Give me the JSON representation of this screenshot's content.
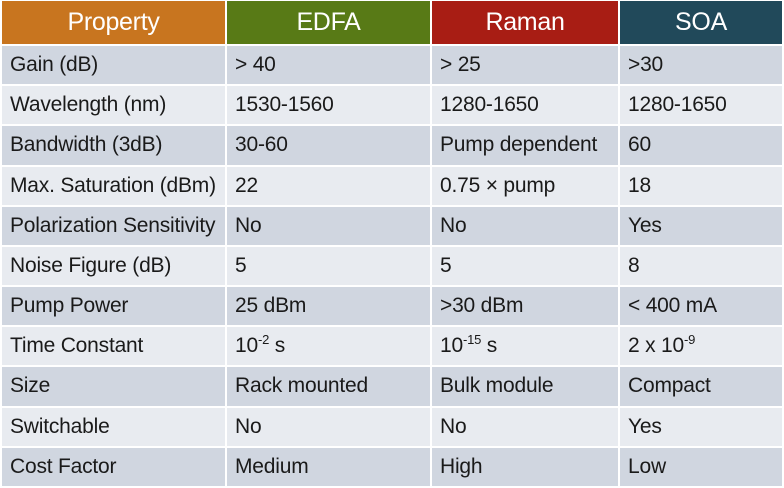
{
  "colors": {
    "property_header": "#c8751f",
    "edfa_header": "#587a16",
    "raman_header": "#a81d14",
    "soa_header": "#21495a",
    "row_dark": "#d0d6e0",
    "row_light": "#e8ebf0"
  },
  "headers": [
    "Property",
    "EDFA",
    "Raman",
    "SOA"
  ],
  "rows": [
    {
      "property": "Gain (dB)",
      "edfa": "> 40",
      "raman": "> 25",
      "soa": ">30"
    },
    {
      "property": "Wavelength (nm)",
      "edfa": "1530-1560",
      "raman": "1280-1650",
      "soa": "1280-1650"
    },
    {
      "property": "Bandwidth (3dB)",
      "edfa": "30-60",
      "raman": "Pump dependent",
      "soa": "60"
    },
    {
      "property": "Max. Saturation (dBm)",
      "edfa": "22",
      "raman": "0.75 × pump",
      "soa": "18"
    },
    {
      "property": "Polarization Sensitivity",
      "edfa": "No",
      "raman": "No",
      "soa": "Yes"
    },
    {
      "property": "Noise Figure (dB)",
      "edfa": "5",
      "raman": "5",
      "soa": "8"
    },
    {
      "property": "Pump Power",
      "edfa": "25 dBm",
      "raman": ">30 dBm",
      "soa": "< 400 mA"
    },
    {
      "property": "Time Constant",
      "edfa_base": "10",
      "edfa_exp": "-2",
      "edfa_unit": " s",
      "raman_base": "10",
      "raman_exp": "-15",
      "raman_unit": " s",
      "soa_base": "2 x 10",
      "soa_exp": "-9"
    },
    {
      "property": "Size",
      "edfa": "Rack mounted",
      "raman": "Bulk module",
      "soa": "Compact"
    },
    {
      "property": "Switchable",
      "edfa": "No",
      "raman": "No",
      "soa": "Yes"
    },
    {
      "property": "Cost Factor",
      "edfa": "Medium",
      "raman": "High",
      "soa": "Low"
    }
  ]
}
